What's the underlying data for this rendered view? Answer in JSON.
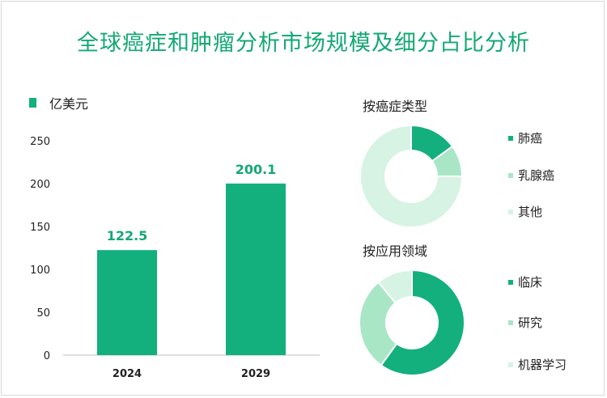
{
  "title": "全球癌症和肿瘤分析市场规模及细分占比分析",
  "colors": {
    "primary": "#13b07d",
    "medium": "#a9e6c6",
    "light": "#d6f3e3",
    "title": "#13a874"
  },
  "chart_data": [
    {
      "type": "bar",
      "title": "",
      "legend_label": "亿美元",
      "categories": [
        "2024",
        "2029"
      ],
      "values": [
        122.5,
        200.1
      ],
      "value_labels": [
        "122.5",
        "200.1"
      ],
      "yticks": [
        "0",
        "50",
        "100",
        "150",
        "200",
        "250"
      ],
      "ylim": [
        0,
        250
      ],
      "xlabel": "",
      "ylabel": ""
    },
    {
      "type": "pie",
      "title": "按癌症类型",
      "labels": [
        "肺癌",
        "乳腺癌",
        "其他"
      ],
      "values": [
        15,
        10,
        75
      ],
      "colors": [
        "#13b07d",
        "#a9e6c6",
        "#d6f3e3"
      ]
    },
    {
      "type": "pie",
      "title": "按应用领域",
      "labels": [
        "临床",
        "研究",
        "机器学习"
      ],
      "values": [
        60,
        29,
        11
      ],
      "colors": [
        "#13b07d",
        "#a9e6c6",
        "#d6f3e3"
      ]
    }
  ]
}
